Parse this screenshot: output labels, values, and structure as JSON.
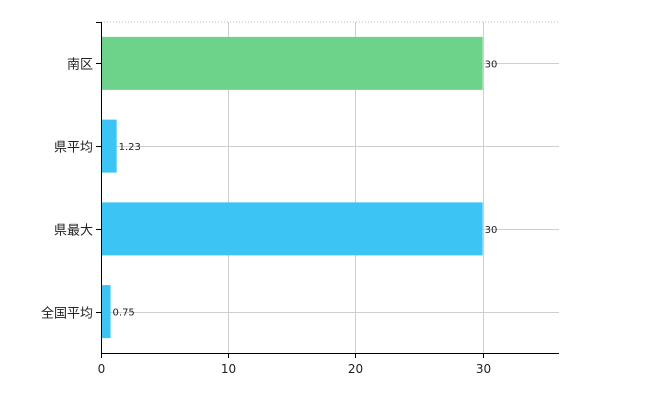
{
  "chart_data": {
    "type": "bar",
    "orientation": "horizontal",
    "categories": [
      "南区",
      "県平均",
      "県最大",
      "全国平均"
    ],
    "values": [
      30,
      1.23,
      30,
      0.75
    ],
    "data_labels": [
      "30",
      "1.23",
      "30",
      "0.75"
    ],
    "bar_colors": [
      "#6dd28a",
      "#3cc4f5",
      "#3cc4f5",
      "#3cc4f5"
    ],
    "xlim": [
      0,
      36
    ],
    "xticks": [
      0,
      10,
      20,
      30
    ],
    "xtick_labels": [
      "0",
      "10",
      "20",
      "30"
    ],
    "grid": true,
    "legend": "none",
    "title": "",
    "xlabel": "",
    "ylabel": ""
  }
}
